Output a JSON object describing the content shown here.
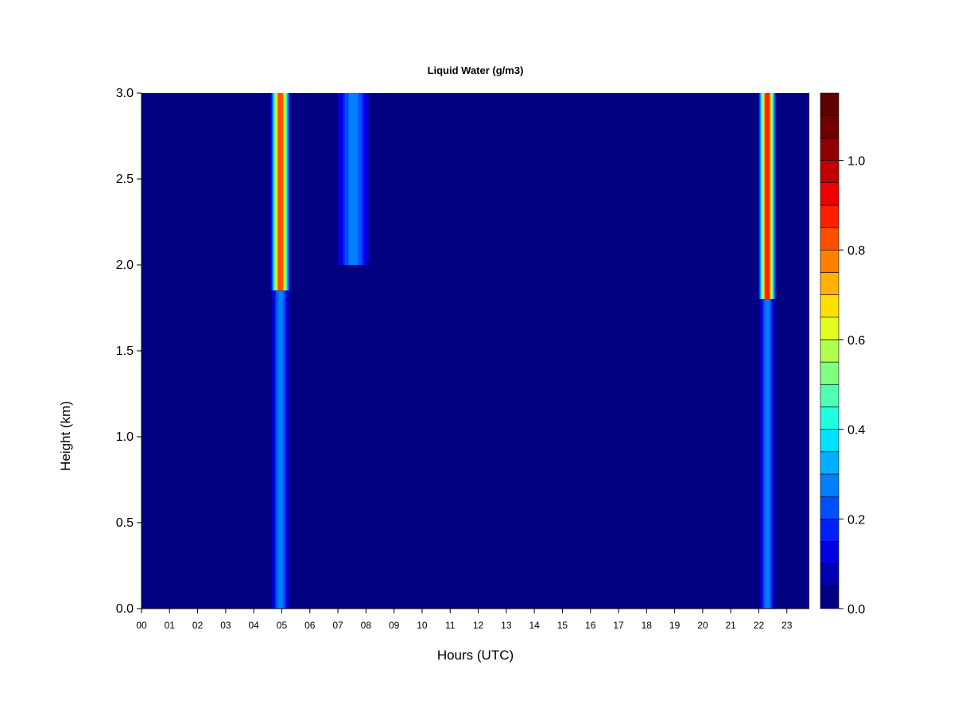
{
  "chart_data": {
    "type": "heatmap",
    "title": "Liquid Water (g/m3)",
    "xlabel": "Hours (UTC)",
    "ylabel": "Height (km)",
    "xlim": [
      0,
      23.8
    ],
    "ylim": [
      0,
      3.0
    ],
    "x_ticks": [
      0,
      1,
      2,
      3,
      4,
      5,
      6,
      7,
      8,
      9,
      10,
      11,
      12,
      13,
      14,
      15,
      16,
      17,
      18,
      19,
      20,
      21,
      22,
      23
    ],
    "x_tick_labels": [
      "00",
      "01",
      "02",
      "03",
      "04",
      "05",
      "06",
      "07",
      "08",
      "09",
      "10",
      "11",
      "12",
      "13",
      "14",
      "15",
      "16",
      "17",
      "18",
      "19",
      "20",
      "21",
      "22",
      "23"
    ],
    "y_ticks": [
      0.0,
      0.5,
      1.0,
      1.5,
      2.0,
      2.5,
      3.0
    ],
    "y_tick_labels": [
      "0.0",
      "0.5",
      "1.0",
      "1.5",
      "2.0",
      "2.5",
      "3.0"
    ],
    "colorbar": {
      "min": 0.0,
      "max": 1.15,
      "levels": [
        0.0,
        0.05,
        0.1,
        0.15,
        0.2,
        0.25,
        0.3,
        0.35,
        0.4,
        0.45,
        0.5,
        0.55,
        0.6,
        0.65,
        0.7,
        0.75,
        0.8,
        0.85,
        0.9,
        0.95,
        1.0,
        1.05,
        1.1,
        1.15
      ],
      "colors": [
        "#000080",
        "#0000b0",
        "#0000e0",
        "#0020ff",
        "#0050ff",
        "#0080ff",
        "#00b0ff",
        "#00e0ff",
        "#20ffe0",
        "#50ffb0",
        "#80ff80",
        "#b0ff50",
        "#e0ff20",
        "#ffe000",
        "#ffb000",
        "#ff8000",
        "#ff5000",
        "#ff2000",
        "#f00000",
        "#c00000",
        "#900000",
        "#700000",
        "#600000"
      ],
      "tick_values": [
        0.0,
        0.2,
        0.4,
        0.6,
        0.8,
        1.0
      ],
      "tick_labels": [
        "0.0",
        "0.2",
        "0.4",
        "0.6",
        "0.8",
        "1.0"
      ]
    },
    "features": [
      {
        "hour_start": 4.6,
        "hour_end": 5.3,
        "height_base": 1.85,
        "height_top": 3.0,
        "peak": 0.9
      },
      {
        "hour_start": 4.6,
        "hour_end": 5.3,
        "height_base": 0.0,
        "height_top": 1.85,
        "peak": 0.3
      },
      {
        "hour_start": 6.9,
        "hour_end": 8.2,
        "height_base": 2.0,
        "height_top": 3.0,
        "peak": 0.3
      },
      {
        "hour_start": 22.0,
        "hour_end": 22.6,
        "height_base": 1.8,
        "height_top": 3.0,
        "peak": 1.0
      },
      {
        "hour_start": 22.0,
        "hour_end": 22.6,
        "height_base": 0.0,
        "height_top": 1.8,
        "peak": 0.3
      }
    ]
  }
}
